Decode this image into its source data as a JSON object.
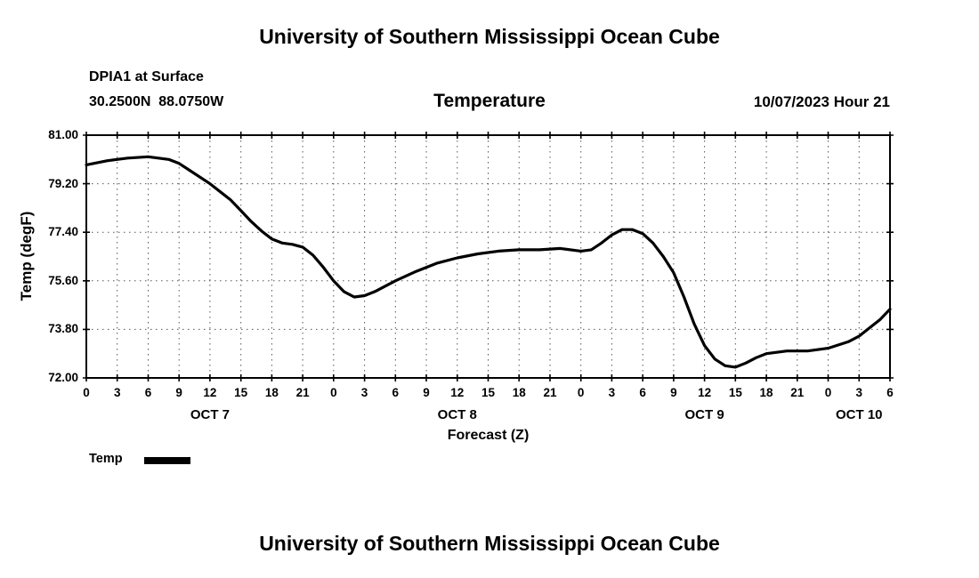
{
  "page": {
    "title_top": "University of Southern Mississippi Ocean Cube",
    "title_bottom": "University of Southern Mississippi Ocean Cube"
  },
  "header": {
    "station": "DPIA1 at Surface",
    "coordinates": "30.2500N  88.0750W",
    "plot_title": "Temperature",
    "datetime": "10/07/2023 Hour 21"
  },
  "axes": {
    "ylabel": "Temp (degF)",
    "xlabel": "Forecast (Z)"
  },
  "legend": {
    "label": "Temp",
    "swatch_color": "#000000"
  },
  "chart_data": {
    "type": "line",
    "title": "Temperature",
    "xlabel": "Forecast (Z)",
    "ylabel": "Temp (degF)",
    "grid": "dashed",
    "legend_position": "bottom-left",
    "xlim": [
      0,
      78
    ],
    "ylim": [
      72.0,
      81.0
    ],
    "x_tick_step": 3,
    "x_hours_mod": 24,
    "yticks": [
      72.0,
      73.8,
      75.6,
      77.4,
      79.2,
      81.0
    ],
    "ytick_labels": [
      "72.00",
      "73.80",
      "75.60",
      "77.40",
      "79.20",
      "81.00"
    ],
    "day_labels": [
      {
        "label": "OCT 7",
        "t": 12
      },
      {
        "label": "OCT 8",
        "t": 36
      },
      {
        "label": "OCT 9",
        "t": 60
      },
      {
        "label": "OCT 10",
        "t": 75
      }
    ],
    "series": [
      {
        "name": "Temp",
        "color": "#000000",
        "points": [
          [
            0,
            79.9
          ],
          [
            2,
            80.05
          ],
          [
            4,
            80.15
          ],
          [
            6,
            80.2
          ],
          [
            8,
            80.1
          ],
          [
            9,
            79.95
          ],
          [
            10,
            79.7
          ],
          [
            12,
            79.2
          ],
          [
            14,
            78.6
          ],
          [
            15,
            78.2
          ],
          [
            16,
            77.8
          ],
          [
            17,
            77.45
          ],
          [
            18,
            77.15
          ],
          [
            19,
            77.0
          ],
          [
            20,
            76.95
          ],
          [
            21,
            76.85
          ],
          [
            22,
            76.55
          ],
          [
            23,
            76.1
          ],
          [
            24,
            75.6
          ],
          [
            25,
            75.2
          ],
          [
            26,
            75.0
          ],
          [
            27,
            75.05
          ],
          [
            28,
            75.2
          ],
          [
            30,
            75.6
          ],
          [
            32,
            75.95
          ],
          [
            34,
            76.25
          ],
          [
            36,
            76.45
          ],
          [
            38,
            76.6
          ],
          [
            40,
            76.7
          ],
          [
            42,
            76.75
          ],
          [
            44,
            76.75
          ],
          [
            46,
            76.8
          ],
          [
            48,
            76.7
          ],
          [
            49,
            76.75
          ],
          [
            50,
            77.0
          ],
          [
            51,
            77.3
          ],
          [
            52,
            77.5
          ],
          [
            53,
            77.5
          ],
          [
            54,
            77.35
          ],
          [
            55,
            77.0
          ],
          [
            56,
            76.5
          ],
          [
            57,
            75.9
          ],
          [
            58,
            75.0
          ],
          [
            59,
            74.0
          ],
          [
            60,
            73.2
          ],
          [
            61,
            72.7
          ],
          [
            62,
            72.45
          ],
          [
            63,
            72.4
          ],
          [
            64,
            72.55
          ],
          [
            65,
            72.75
          ],
          [
            66,
            72.9
          ],
          [
            68,
            73.0
          ],
          [
            70,
            73.0
          ],
          [
            72,
            73.1
          ],
          [
            74,
            73.35
          ],
          [
            75,
            73.55
          ],
          [
            76,
            73.85
          ],
          [
            77,
            74.15
          ],
          [
            78,
            74.55
          ]
        ]
      }
    ]
  }
}
